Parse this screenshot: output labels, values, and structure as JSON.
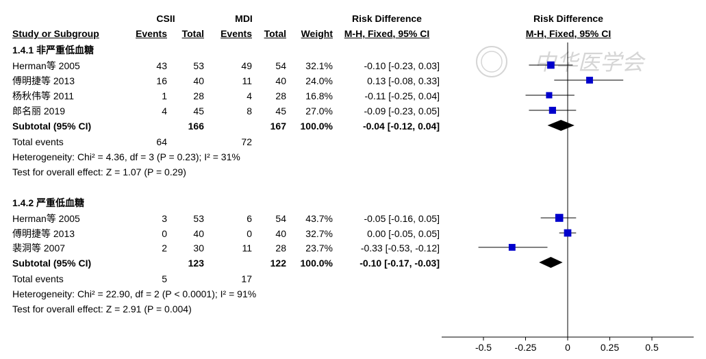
{
  "chart_data": {
    "type": "forest",
    "columns": {
      "group1": "CSII",
      "group2": "MDI",
      "effect_header": "Risk Difference",
      "study": "Study or Subgroup",
      "events": "Events",
      "total": "Total",
      "weight": "Weight",
      "method": "M-H, Fixed, 95% CI",
      "plot_header": "Risk Difference",
      "plot_method": "M-H, Fixed, 95% CI"
    },
    "subgroups": [
      {
        "title": "1.4.1 非严重低血糖",
        "studies": [
          {
            "name": "Herman等 2005",
            "e1": "43",
            "n1": "53",
            "e2": "49",
            "n2": "54",
            "weight": "32.1%",
            "ci": "-0.10 [-0.23, 0.03]",
            "rd": -0.1,
            "lo": -0.23,
            "hi": 0.03,
            "w": 32.1
          },
          {
            "name": "傅明捷等 2013",
            "e1": "16",
            "n1": "40",
            "e2": "11",
            "n2": "40",
            "weight": "24.0%",
            "ci": "0.13 [-0.08, 0.33]",
            "rd": 0.13,
            "lo": -0.08,
            "hi": 0.33,
            "w": 24.0
          },
          {
            "name": "杨秋伟等 2011",
            "e1": "1",
            "n1": "28",
            "e2": "4",
            "n2": "28",
            "weight": "16.8%",
            "ci": "-0.11 [-0.25, 0.04]",
            "rd": -0.11,
            "lo": -0.25,
            "hi": 0.04,
            "w": 16.8
          },
          {
            "name": "郎名丽 2019",
            "e1": "4",
            "n1": "45",
            "e2": "8",
            "n2": "45",
            "weight": "27.0%",
            "ci": "-0.09 [-0.23, 0.05]",
            "rd": -0.09,
            "lo": -0.23,
            "hi": 0.05,
            "w": 27.0
          }
        ],
        "subtotal": {
          "label": "Subtotal (95% CI)",
          "n1": "166",
          "n2": "167",
          "weight": "100.0%",
          "ci": "-0.04 [-0.12, 0.04]",
          "rd": -0.04,
          "lo": -0.12,
          "hi": 0.04
        },
        "total_events": {
          "label": "Total events",
          "e1": "64",
          "e2": "72"
        },
        "heterogeneity": "Heterogeneity: Chi² = 4.36, df = 3 (P = 0.23); I² = 31%",
        "overall": "Test for overall effect: Z = 1.07 (P = 0.29)"
      },
      {
        "title": "1.4.2 严重低血糖",
        "studies": [
          {
            "name": "Herman等 2005",
            "e1": "3",
            "n1": "53",
            "e2": "6",
            "n2": "54",
            "weight": "43.7%",
            "ci": "-0.05 [-0.16, 0.05]",
            "rd": -0.05,
            "lo": -0.16,
            "hi": 0.05,
            "w": 43.7
          },
          {
            "name": "傅明捷等 2013",
            "e1": "0",
            "n1": "40",
            "e2": "0",
            "n2": "40",
            "weight": "32.7%",
            "ci": "0.00 [-0.05, 0.05]",
            "rd": 0.0,
            "lo": -0.05,
            "hi": 0.05,
            "w": 32.7
          },
          {
            "name": "裴洞等 2007",
            "e1": "2",
            "n1": "30",
            "e2": "11",
            "n2": "28",
            "weight": "23.7%",
            "ci": "-0.33 [-0.53, -0.12]",
            "rd": -0.33,
            "lo": -0.53,
            "hi": -0.12,
            "w": 23.7
          }
        ],
        "subtotal": {
          "label": "Subtotal (95% CI)",
          "n1": "123",
          "n2": "122",
          "weight": "100.0%",
          "ci": "-0.10 [-0.17, -0.03]",
          "rd": -0.1,
          "lo": -0.17,
          "hi": -0.03
        },
        "total_events": {
          "label": "Total events",
          "e1": "5",
          "e2": "17"
        },
        "heterogeneity": "Heterogeneity: Chi² = 22.90, df = 2 (P < 0.0001); I² = 91%",
        "overall": "Test for overall effect: Z = 2.91 (P = 0.004)"
      }
    ],
    "x_axis": {
      "ticks": [
        -0.5,
        -0.25,
        0,
        0.25,
        0.5
      ],
      "tick_labels": [
        "-0.5",
        "-0.25",
        "0",
        "0.25",
        "0.5"
      ],
      "xlim": [
        -0.75,
        0.75
      ]
    },
    "colors": {
      "marker": "#0000cc",
      "diamond": "#000000",
      "line": "#000000"
    },
    "watermark_text": "中华医学会"
  }
}
